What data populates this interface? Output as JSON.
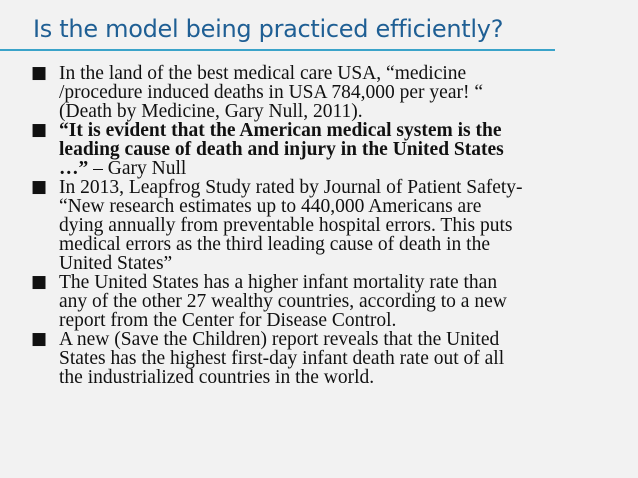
{
  "slide": {
    "title": "Is the model being practiced efficiently?",
    "accent_color": "#3aa3c9",
    "title_color": "#1f5f94",
    "bullet_marker": "■",
    "bullets": [
      {
        "lines": [
          "In the land of the best medical care USA, “medicine",
          "/procedure induced deaths in USA 784,000 per year! “",
          "(Death by Medicine, Gary Null, 2011)."
        ]
      },
      {
        "lines": [
          "“It is evident that the American medical system is the",
          "leading cause of death and injury in the United States",
          "…”"
        ],
        "trailing": " – Gary Null"
      },
      {
        "lines": [
          "In 2013, Leapfrog Study rated by Journal of Patient Safety-",
          "“New research estimates up to 440,000 Americans are",
          "dying annually from preventable hospital errors. This puts",
          "medical errors as the third leading cause of death in the",
          "United States”"
        ]
      },
      {
        "lines": [
          "The United States has a higher infant mortality rate than",
          "any of the other 27 wealthy countries, according to a new",
          "report from the Center for Disease Control."
        ]
      },
      {
        "lines": [
          "A new (Save the Children) report reveals that the United",
          "States has the highest first-day infant death rate out of all",
          "the industrialized countries in the world."
        ]
      }
    ]
  }
}
